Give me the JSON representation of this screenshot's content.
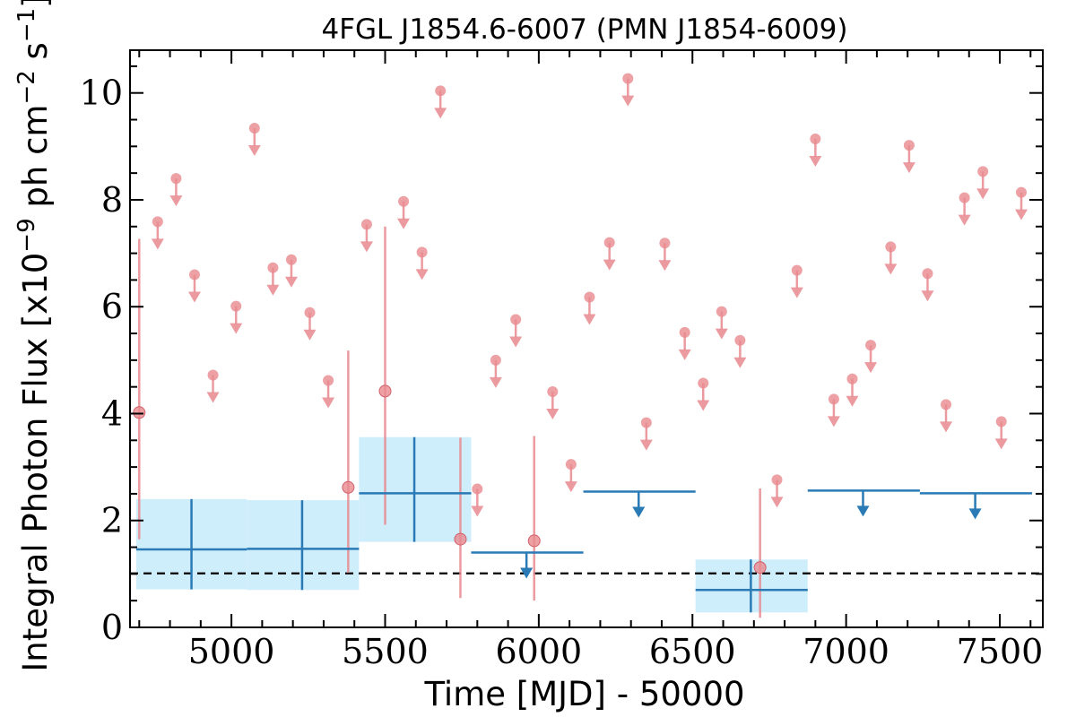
{
  "chart_data": {
    "type": "scatter",
    "title": "4FGL J1854.6-6007 (PMN J1854-6009)",
    "xlabel": "Time [MJD] - 50000",
    "ylabel": "Integral Photon Flux [x10$^{-9}$ ph cm$^{-2}$ s$^{-1}$]",
    "ylabel_main": "Integral Photon Flux [x10",
    "ylabel_exp1": "−9",
    "ylabel_mid": " ph cm",
    "ylabel_exp2": "−2",
    "ylabel_s": " s",
    "ylabel_exp3": "−1",
    "ylabel_end": "]",
    "xlim": [
      4670,
      7640
    ],
    "ylim": [
      0,
      10.8
    ],
    "xticks": [
      5000,
      5500,
      6000,
      6500,
      7000,
      7500
    ],
    "yticks": [
      0,
      2,
      4,
      6,
      8,
      10
    ],
    "grid": false,
    "reference_line": 1.01,
    "short_bins": {
      "color": "#e8898f",
      "detections": [
        {
          "x": 4700,
          "y": 4.02,
          "ylo": 1.65,
          "yhi": 7.27
        },
        {
          "x": 5380,
          "y": 2.62,
          "ylo": 1.02,
          "yhi": 5.18
        },
        {
          "x": 5500,
          "y": 4.42,
          "ylo": 1.92,
          "yhi": 7.5
        },
        {
          "x": 5745,
          "y": 1.65,
          "ylo": 0.55,
          "yhi": 3.55
        },
        {
          "x": 5985,
          "y": 1.62,
          "ylo": 0.5,
          "yhi": 3.58
        },
        {
          "x": 6720,
          "y": 1.12,
          "ylo": 0.18,
          "yhi": 2.6
        }
      ],
      "upper_limits": [
        {
          "x": 4760,
          "y": 7.59
        },
        {
          "x": 4820,
          "y": 8.4
        },
        {
          "x": 4880,
          "y": 6.6
        },
        {
          "x": 4940,
          "y": 4.72
        },
        {
          "x": 5015,
          "y": 6.01
        },
        {
          "x": 5075,
          "y": 9.34
        },
        {
          "x": 5135,
          "y": 6.73
        },
        {
          "x": 5195,
          "y": 6.88
        },
        {
          "x": 5255,
          "y": 5.89
        },
        {
          "x": 5315,
          "y": 4.62
        },
        {
          "x": 5440,
          "y": 7.54
        },
        {
          "x": 5560,
          "y": 7.97
        },
        {
          "x": 5620,
          "y": 7.02
        },
        {
          "x": 5680,
          "y": 10.04
        },
        {
          "x": 5800,
          "y": 2.59
        },
        {
          "x": 5860,
          "y": 5.0
        },
        {
          "x": 5925,
          "y": 5.76
        },
        {
          "x": 6045,
          "y": 4.41
        },
        {
          "x": 6105,
          "y": 3.05
        },
        {
          "x": 6165,
          "y": 6.18
        },
        {
          "x": 6230,
          "y": 7.2
        },
        {
          "x": 6290,
          "y": 10.27
        },
        {
          "x": 6350,
          "y": 3.83
        },
        {
          "x": 6410,
          "y": 7.19
        },
        {
          "x": 6475,
          "y": 5.52
        },
        {
          "x": 6535,
          "y": 4.57
        },
        {
          "x": 6595,
          "y": 5.91
        },
        {
          "x": 6655,
          "y": 5.37
        },
        {
          "x": 6775,
          "y": 2.76
        },
        {
          "x": 6840,
          "y": 6.68
        },
        {
          "x": 6900,
          "y": 9.14
        },
        {
          "x": 6960,
          "y": 4.27
        },
        {
          "x": 7020,
          "y": 4.65
        },
        {
          "x": 7080,
          "y": 5.28
        },
        {
          "x": 7145,
          "y": 7.12
        },
        {
          "x": 7205,
          "y": 9.02
        },
        {
          "x": 7265,
          "y": 6.62
        },
        {
          "x": 7325,
          "y": 4.17
        },
        {
          "x": 7385,
          "y": 8.04
        },
        {
          "x": 7445,
          "y": 8.53
        },
        {
          "x": 7505,
          "y": 3.85
        },
        {
          "x": 7570,
          "y": 8.14
        }
      ]
    },
    "long_bins": {
      "color": "#2a7ab5",
      "band_color": "#cfeefc",
      "detections": [
        {
          "x": 4870,
          "x0": 4690,
          "x1": 5050,
          "y": 1.46,
          "ylo": 0.71,
          "yhi": 2.4
        },
        {
          "x": 5230,
          "x0": 5050,
          "x1": 5415,
          "y": 1.47,
          "ylo": 0.7,
          "yhi": 2.38
        },
        {
          "x": 5595,
          "x0": 5415,
          "x1": 5780,
          "y": 2.51,
          "ylo": 1.6,
          "yhi": 3.56
        },
        {
          "x": 6690,
          "x0": 6510,
          "x1": 6875,
          "y": 0.7,
          "ylo": 0.28,
          "yhi": 1.27
        }
      ],
      "upper_limits": [
        {
          "x": 5960,
          "x0": 5780,
          "x1": 6145,
          "y": 1.4
        },
        {
          "x": 6325,
          "x0": 6145,
          "x1": 6510,
          "y": 2.54
        },
        {
          "x": 7055,
          "x0": 6875,
          "x1": 7240,
          "y": 2.56
        },
        {
          "x": 7420,
          "x0": 7240,
          "x1": 7605,
          "y": 2.51
        }
      ]
    }
  }
}
